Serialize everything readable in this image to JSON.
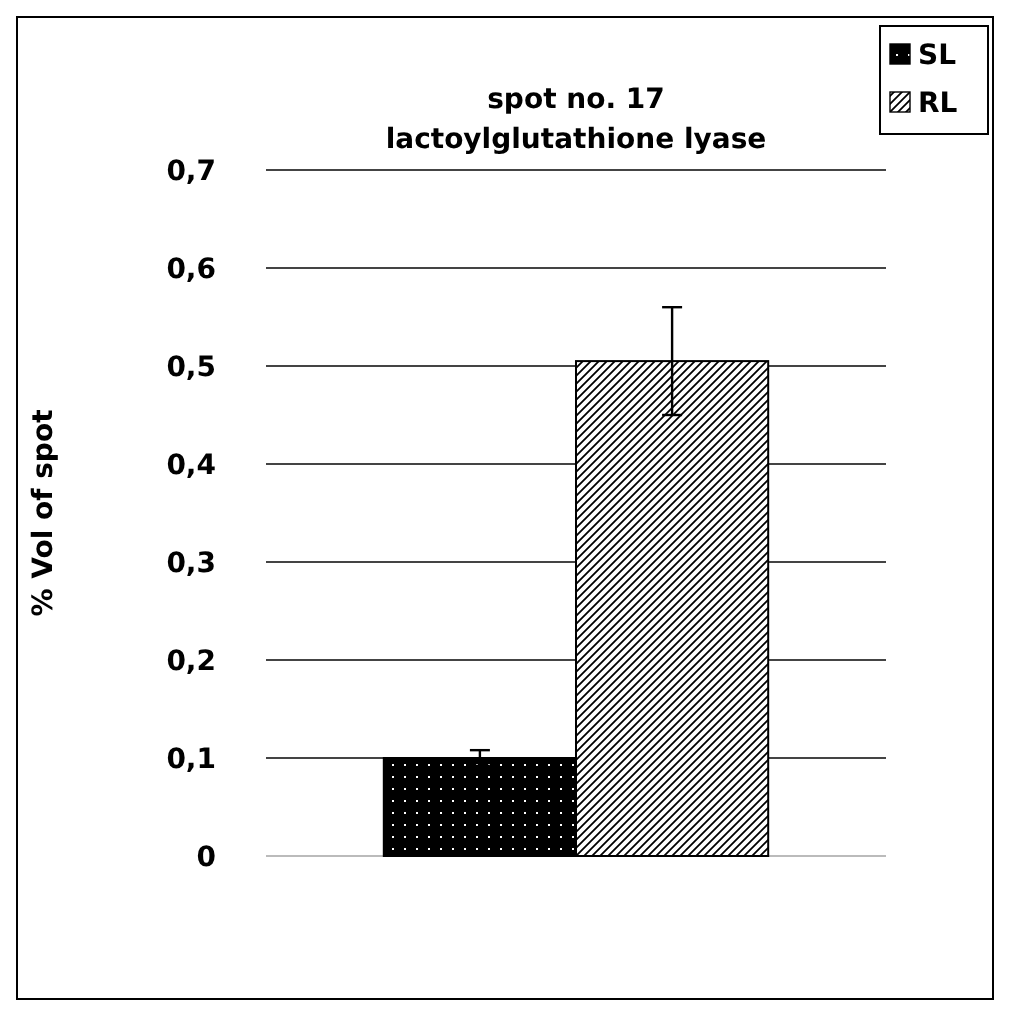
{
  "chart_data": {
    "type": "bar",
    "title": "spot no. 17\nlactoylglutathione lyase",
    "ylabel": "% Vol of spot",
    "categories": [
      null
    ],
    "series": [
      {
        "name": "SL",
        "color": "#000000",
        "values": [
          0.1
        ],
        "errors": [
          0.008
        ]
      },
      {
        "name": "RL",
        "color": "#000000",
        "values": [
          0.505
        ],
        "errors": [
          [
            0.45,
            0.56
          ]
        ]
      }
    ],
    "ylim": [
      0,
      0.7
    ],
    "yticks": [
      0,
      {
        "value": 0.1,
        "label": "0,1"
      },
      {
        "value": 0.2,
        "label": "0,2"
      },
      {
        "value": 0.3,
        "label": "0,3"
      },
      {
        "value": 0.4,
        "label": "0,4"
      },
      {
        "value": 0.5,
        "label": "0,5"
      },
      {
        "value": 0.6,
        "label": "0,6"
      },
      {
        "value": 0.7,
        "label": "0,7"
      }
    ],
    "grid": "y",
    "legend": "top right"
  }
}
